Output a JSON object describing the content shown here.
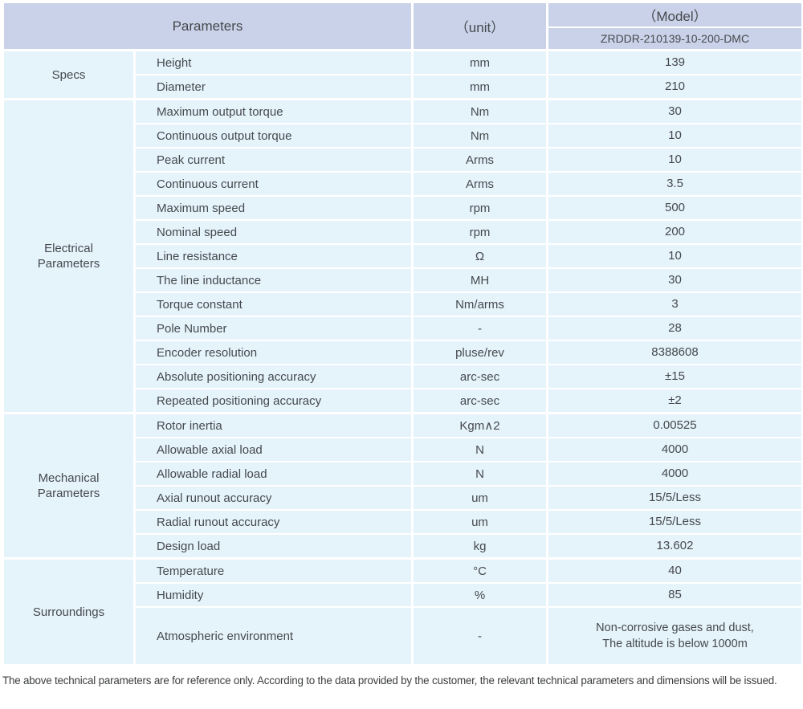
{
  "table": {
    "header": {
      "parameters_label": "Parameters",
      "unit_label": "（unit）",
      "model_label": "（Model）",
      "model_value": "ZRDDR-210139-10-200-DMC"
    },
    "sections": [
      {
        "category": "Specs",
        "rows": [
          {
            "param": "Height",
            "unit": "mm",
            "value": "139"
          },
          {
            "param": "Diameter",
            "unit": "mm",
            "value": "210"
          }
        ]
      },
      {
        "category": "Electrical\nParameters",
        "rows": [
          {
            "param": "Maximum output torque",
            "unit": "Nm",
            "value": "30"
          },
          {
            "param": "Continuous output torque",
            "unit": "Nm",
            "value": "10"
          },
          {
            "param": "Peak current",
            "unit": "Arms",
            "value": "10"
          },
          {
            "param": "Continuous current",
            "unit": "Arms",
            "value": "3.5"
          },
          {
            "param": "Maximum speed",
            "unit": "rpm",
            "value": "500"
          },
          {
            "param": "Nominal speed",
            "unit": "rpm",
            "value": "200"
          },
          {
            "param": "Line resistance",
            "unit": "Ω",
            "value": "10"
          },
          {
            "param": "The line inductance",
            "unit": "MH",
            "value": "30"
          },
          {
            "param": "Torque constant",
            "unit": "Nm/arms",
            "value": "3"
          },
          {
            "param": "Pole Number",
            "unit": "-",
            "value": "28"
          },
          {
            "param": "Encoder resolution",
            "unit": "pluse/rev",
            "value": "8388608"
          },
          {
            "param": "Absolute positioning accuracy",
            "unit": "arc-sec",
            "value": "±15"
          },
          {
            "param": "Repeated positioning accuracy",
            "unit": "arc-sec",
            "value": "±2"
          }
        ]
      },
      {
        "category": "Mechanical\nParameters",
        "rows": [
          {
            "param": "Rotor inertia",
            "unit": "Kgm∧2",
            "value": "0.00525"
          },
          {
            "param": "Allowable axial load",
            "unit": "N",
            "value": "4000"
          },
          {
            "param": "Allowable radial load",
            "unit": "N",
            "value": "4000"
          },
          {
            "param": "Axial runout accuracy",
            "unit": "um",
            "value": "15/5/Less"
          },
          {
            "param": "Radial runout accuracy",
            "unit": "um",
            "value": "15/5/Less"
          },
          {
            "param": "Design load",
            "unit": "kg",
            "value": "13.602"
          }
        ]
      },
      {
        "category": "Surroundings",
        "rows": [
          {
            "param": "Temperature",
            "unit": "°C",
            "value": "40"
          },
          {
            "param": "Humidity",
            "unit": "%",
            "value": "85"
          },
          {
            "param": "Atmospheric environment",
            "unit": "-",
            "value": "Non-corrosive gases and dust,\nThe altitude is below 1000m",
            "tall": true
          }
        ]
      }
    ]
  },
  "footer": {
    "note": "The above technical parameters are for reference only. According to the data provided by the customer, the relevant technical parameters and dimensions will be issued."
  },
  "colors": {
    "header_bg": "#cad2e9",
    "row_bg": "#e5f3fb",
    "text": "#45494d"
  }
}
